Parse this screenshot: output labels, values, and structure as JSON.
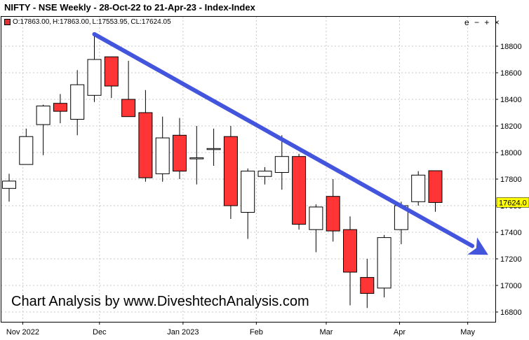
{
  "title": "NIFTY - NSE Weekly - 28-Oct-22 to 21-Apr-23 - Index-Index",
  "ohlc_readout": {
    "open": "O:17863.00,",
    "high": "H:17863.00,",
    "low": "L:17553.95,",
    "close": "CL:17624.05"
  },
  "controls": {
    "collapse": "e",
    "minus": "−",
    "plus": "+",
    "close": "×"
  },
  "watermark": "Chart Analysis by www.DiveshtechAnalysis.com",
  "last_price_label": "17624.0",
  "colors": {
    "up": "#ffffff",
    "down": "#ff3535",
    "trendline": "#4455dd",
    "last_price_bg": "#ffff00"
  },
  "chart_data": {
    "type": "candlestick",
    "ylim": [
      16700,
      18960
    ],
    "y_ticks": [
      16800,
      17000,
      17200,
      17400,
      17600,
      17800,
      18000,
      18200,
      18400,
      18600,
      18800
    ],
    "x_tick_labels": [
      "Nov 2022",
      "Dec",
      "Jan 2023",
      "Feb",
      "Mar",
      "Apr",
      "May"
    ],
    "x_tick_index": [
      0.8,
      5.3,
      10.2,
      14.5,
      18.6,
      22.9,
      26.9
    ],
    "candles": [
      {
        "week": "28-Oct-22",
        "open": 17730,
        "high": 17840,
        "low": 17630,
        "close": 17785
      },
      {
        "week": "04-Nov-22",
        "open": 17910,
        "high": 18180,
        "low": 17910,
        "close": 18120
      },
      {
        "week": "11-Nov-22",
        "open": 18210,
        "high": 18360,
        "low": 17980,
        "close": 18350
      },
      {
        "week": "18-Nov-22",
        "open": 18370,
        "high": 18440,
        "low": 18220,
        "close": 18310
      },
      {
        "week": "25-Nov-22",
        "open": 18250,
        "high": 18620,
        "low": 18130,
        "close": 18510
      },
      {
        "week": "02-Dec-22",
        "open": 18430,
        "high": 18890,
        "low": 18380,
        "close": 18700
      },
      {
        "week": "09-Dec-22",
        "open": 18720,
        "high": 18720,
        "low": 18410,
        "close": 18500
      },
      {
        "week": "16-Dec-22",
        "open": 18400,
        "high": 18690,
        "low": 18270,
        "close": 18270
      },
      {
        "week": "23-Dec-22",
        "open": 18300,
        "high": 18470,
        "low": 17780,
        "close": 17810
      },
      {
        "week": "30-Dec-22",
        "open": 17840,
        "high": 18270,
        "low": 17780,
        "close": 18110
      },
      {
        "week": "06-Jan-23",
        "open": 18130,
        "high": 18260,
        "low": 17800,
        "close": 17860
      },
      {
        "week": "13-Jan-23",
        "open": 17960,
        "high": 18200,
        "low": 17760,
        "close": 17960
      },
      {
        "week": "20-Jan-23",
        "open": 18030,
        "high": 18180,
        "low": 17900,
        "close": 18030
      },
      {
        "week": "27-Jan-23",
        "open": 18120,
        "high": 18200,
        "low": 17500,
        "close": 17600
      },
      {
        "week": "03-Feb-23",
        "open": 17550,
        "high": 17880,
        "low": 17350,
        "close": 17860
      },
      {
        "week": "10-Feb-23",
        "open": 17820,
        "high": 17890,
        "low": 17760,
        "close": 17860
      },
      {
        "week": "17-Feb-23",
        "open": 17850,
        "high": 18130,
        "low": 17720,
        "close": 17970
      },
      {
        "week": "24-Feb-23",
        "open": 17970,
        "high": 17990,
        "low": 17420,
        "close": 17460
      },
      {
        "week": "03-Mar-23",
        "open": 17420,
        "high": 17610,
        "low": 17250,
        "close": 17590
      },
      {
        "week": "10-Mar-23",
        "open": 17670,
        "high": 17800,
        "low": 17330,
        "close": 17410
      },
      {
        "week": "17-Mar-23",
        "open": 17420,
        "high": 17520,
        "low": 16850,
        "close": 17100
      },
      {
        "week": "24-Mar-23",
        "open": 17060,
        "high": 17200,
        "low": 16830,
        "close": 16940
      },
      {
        "week": "31-Mar-23",
        "open": 16980,
        "high": 17380,
        "low": 16910,
        "close": 17360
      },
      {
        "week": "07-Apr-23",
        "open": 17420,
        "high": 17630,
        "low": 17310,
        "close": 17600
      },
      {
        "week": "14-Apr-23",
        "open": 17630,
        "high": 17860,
        "low": 17600,
        "close": 17830
      },
      {
        "week": "21-Apr-23",
        "open": 17863,
        "high": 17863,
        "low": 17553.95,
        "close": 17624.05
      }
    ],
    "annotations": [
      {
        "type": "trend_arrow",
        "direction": "downward",
        "from": {
          "index": 5,
          "value": 18890
        },
        "to": {
          "index": 28.1,
          "value": 17230
        }
      }
    ]
  }
}
